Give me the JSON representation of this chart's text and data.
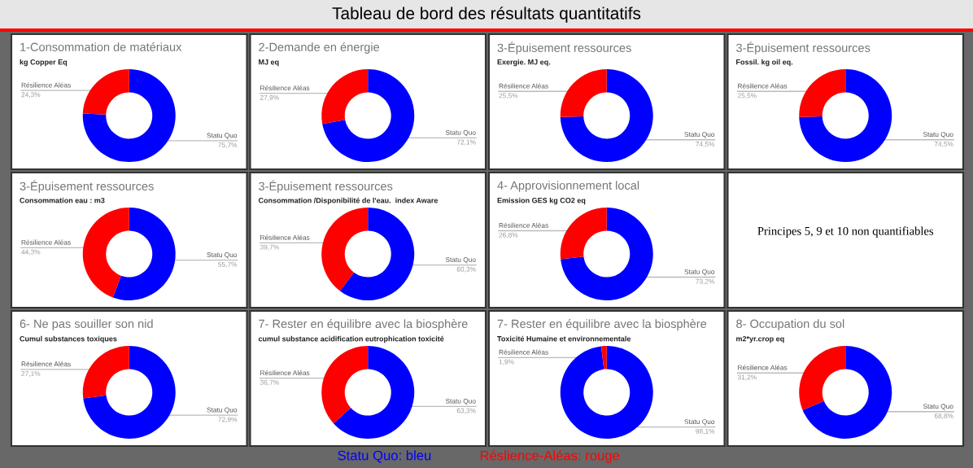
{
  "chart_data": [
    {
      "type": "other",
      "title": "Tableau de bord des résultats quantitatifs"
    },
    {
      "type": "donut",
      "title": "1-Consommation de matériaux",
      "subtitle": "kg Copper Eq",
      "categories": [
        "Statu Quo",
        "Résilience Aléas"
      ],
      "values": [
        75.7,
        24.3
      ],
      "value_labels": [
        "75,7%",
        "24,3%"
      ],
      "colors": [
        "#0000ff",
        "#ff0000"
      ]
    },
    {
      "type": "donut",
      "title": "2-Demande en énergie",
      "subtitle": "MJ eq",
      "categories": [
        "Statu Quo",
        "Résilience Aléas"
      ],
      "values": [
        72.1,
        27.9
      ],
      "value_labels": [
        "72,1%",
        "27,9%"
      ],
      "colors": [
        "#0000ff",
        "#ff0000"
      ]
    },
    {
      "type": "donut",
      "title": "3-Épuisement ressources",
      "subtitle": "Exergie. MJ eq.",
      "categories": [
        "Statu Quo",
        "Résilience Aléas"
      ],
      "values": [
        74.5,
        25.5
      ],
      "value_labels": [
        "74,5%",
        "25,5%"
      ],
      "colors": [
        "#0000ff",
        "#ff0000"
      ]
    },
    {
      "type": "donut",
      "title": "3-Épuisement ressources",
      "subtitle": "Fossil. kg oil eq.",
      "categories": [
        "Statu Quo",
        "Résilience Aléas"
      ],
      "values": [
        74.5,
        25.5
      ],
      "value_labels": [
        "74,5%",
        "25,5%"
      ],
      "colors": [
        "#0000ff",
        "#ff0000"
      ]
    },
    {
      "type": "donut",
      "title": "3-Épuisement ressources",
      "subtitle": "Consommation eau : m3",
      "categories": [
        "Statu Quo",
        "Résilience Aléas"
      ],
      "values": [
        55.7,
        44.3
      ],
      "value_labels": [
        "55,7%",
        "44,3%"
      ],
      "colors": [
        "#0000ff",
        "#ff0000"
      ]
    },
    {
      "type": "donut",
      "title": "3-Épuisement ressources",
      "subtitle": "Consommation /Disponibilité de l'eau.  index Aware",
      "categories": [
        "Statu Quo",
        "Résilience Aléas"
      ],
      "values": [
        60.3,
        39.7
      ],
      "value_labels": [
        "60,3%",
        "39,7%"
      ],
      "colors": [
        "#0000ff",
        "#ff0000"
      ]
    },
    {
      "type": "donut",
      "title": "4- Approvisionnement local",
      "subtitle": "Emission GES kg CO2 eq",
      "categories": [
        "Statu Quo",
        "Résilience Aléas"
      ],
      "values": [
        73.2,
        26.8
      ],
      "value_labels": [
        "73,2%",
        "26,8%"
      ],
      "colors": [
        "#0000ff",
        "#ff0000"
      ]
    },
    {
      "type": "other",
      "annotations": [
        "Principes 5, 9 et 10 non quantifiables"
      ]
    },
    {
      "type": "donut",
      "title": "6- Ne pas souiller son nid",
      "subtitle": "Cumul substances toxiques",
      "categories": [
        "Statu Quo",
        "Résilience Aléas"
      ],
      "values": [
        72.9,
        27.1
      ],
      "value_labels": [
        "72,9%",
        "27,1%"
      ],
      "colors": [
        "#0000ff",
        "#ff0000"
      ]
    },
    {
      "type": "donut",
      "title": "7- Rester en équilibre avec la biosphère",
      "subtitle": "cumul substance acidification eutrophication toxicité",
      "categories": [
        "Statu Quo",
        "Résilience Aléas"
      ],
      "values": [
        63.3,
        36.7
      ],
      "value_labels": [
        "63,3%",
        "36,7%"
      ],
      "colors": [
        "#0000ff",
        "#ff0000"
      ]
    },
    {
      "type": "donut",
      "title": "7- Rester en équilibre avec la biosphère",
      "subtitle": "Toxicité Humaine et environnementale",
      "categories": [
        "Statu Quo",
        "Résilience Aléas"
      ],
      "values": [
        98.1,
        1.9
      ],
      "value_labels": [
        "98,1%",
        "1,9%"
      ],
      "colors": [
        "#0000ff",
        "#ff0000"
      ]
    },
    {
      "type": "donut",
      "title": "8- Occupation du sol",
      "subtitle": "m2*yr.crop eq",
      "categories": [
        "Statu Quo",
        "Résilience Aléas"
      ],
      "values": [
        68.8,
        31.2
      ],
      "value_labels": [
        "68,8%",
        "31,2%"
      ],
      "colors": [
        "#0000ff",
        "#ff0000"
      ]
    },
    {
      "type": "other",
      "annotations": [
        "Statu Quo: bleu",
        "Réslience-Aléas: rouge"
      ],
      "colors": [
        "#0000ff",
        "#ff0000"
      ]
    }
  ]
}
